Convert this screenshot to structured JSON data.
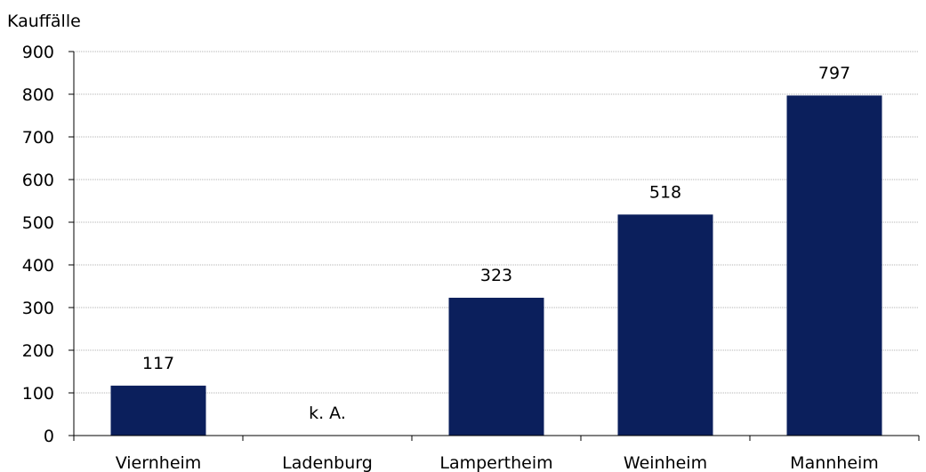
{
  "chart_data": {
    "type": "bar",
    "ylabel": "Kauffälle",
    "categories": [
      "Viernheim",
      "Ladenburg",
      "Lampertheim",
      "Weinheim",
      "Mannheim"
    ],
    "values": [
      117,
      null,
      323,
      518,
      797
    ],
    "data_labels": [
      "117",
      "k. A.",
      "323",
      "518",
      "797"
    ],
    "ylim": [
      0,
      900
    ],
    "yticks": [
      0,
      100,
      200,
      300,
      400,
      500,
      600,
      700,
      800,
      900
    ],
    "grid": true,
    "legend": "none",
    "bar_color": "#0b1f5c",
    "grid_color": "#b3b3b3"
  }
}
